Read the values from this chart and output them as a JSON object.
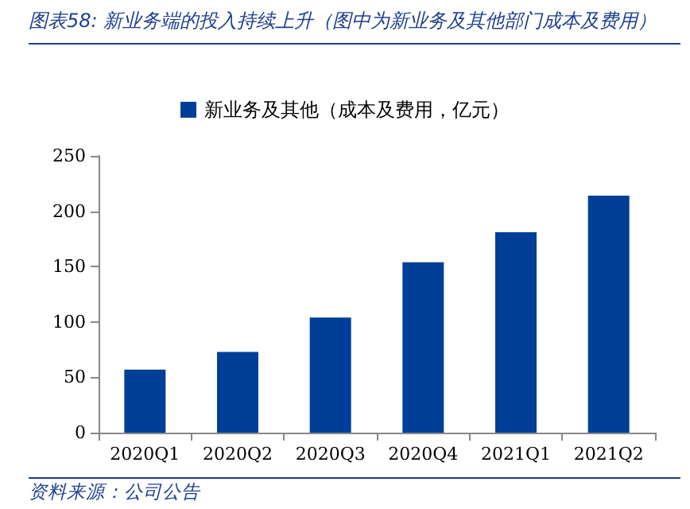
{
  "chart_data": {
    "type": "bar",
    "title": "图表58:  新业务端的投入持续上升（图中为新业务及其他部门成本及费用）",
    "categories": [
      "2020Q1",
      "2020Q2",
      "2020Q3",
      "2020Q4",
      "2021Q1",
      "2021Q2"
    ],
    "series": [
      {
        "name": "新业务及其他（成本及费用，亿元）",
        "color": "#003f98",
        "values": [
          57,
          73,
          104,
          154,
          181,
          214
        ]
      }
    ],
    "ylim": [
      0,
      250
    ],
    "yticks": [
      0,
      50,
      100,
      150,
      200,
      250
    ],
    "grid": false,
    "legend": "top",
    "annotations": [
      "资料来源：公司公告"
    ]
  }
}
